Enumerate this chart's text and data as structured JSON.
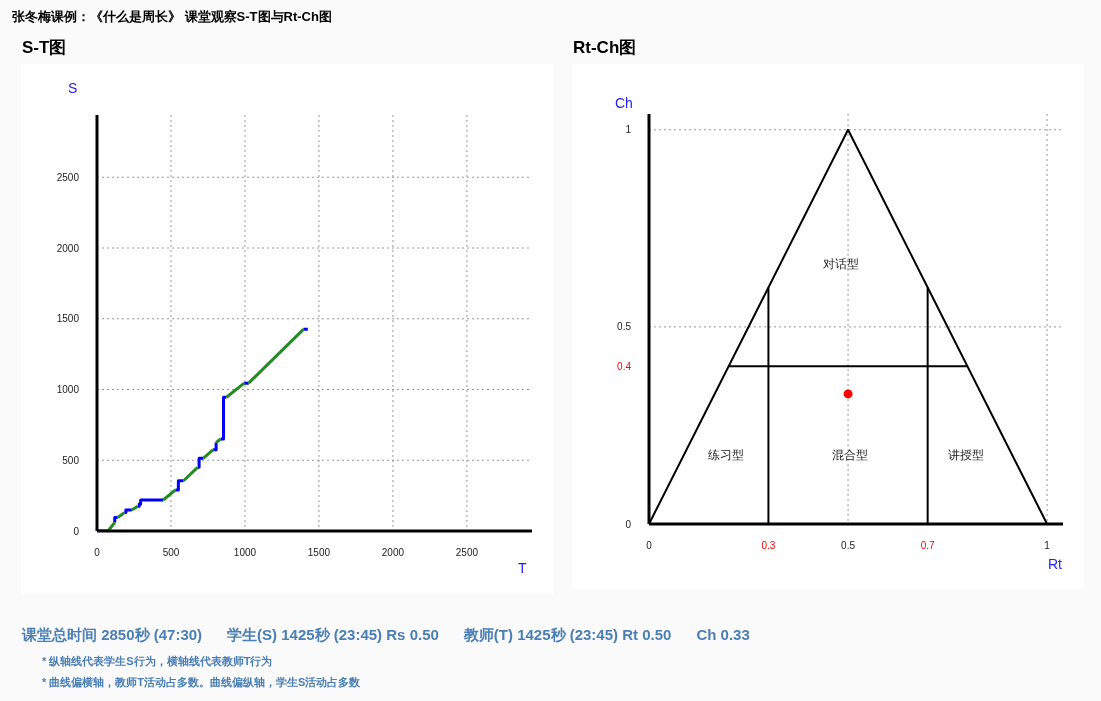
{
  "chart_data": [
    {
      "type": "other",
      "title": "张冬梅课例：《什么是周长》 课堂观察S-T图与Rt-Ch图"
    },
    {
      "type": "line",
      "title": "S-T图",
      "xlabel": "T",
      "ylabel": "S",
      "xlim": [
        0,
        2940
      ],
      "ylim": [
        0,
        2940
      ],
      "xticks": [
        0,
        500,
        1000,
        1500,
        2000,
        2500
      ],
      "yticks": [
        0,
        500,
        1000,
        1500,
        2000,
        2500
      ],
      "grid": true,
      "x": [
        0,
        75,
        120,
        120,
        120,
        140,
        185,
        185,
        195,
        195,
        235,
        275,
        275,
        285,
        285,
        295,
        295,
        448,
        530,
        530,
        550,
        550,
        585,
        680,
        680,
        690,
        690,
        720,
        785,
        785,
        805,
        805,
        835,
        835,
        855,
        855,
        875,
        995,
        995,
        1025,
        1395,
        1395,
        1425
      ],
      "series": [
        {
          "color": "#0000ff",
          "values": [
            0,
            0,
            null,
            60,
            95,
            95,
            null,
            130,
            130,
            148,
            148,
            null,
            175,
            175,
            190,
            190,
            219,
            219,
            null,
            290,
            290,
            355,
            355,
            null,
            450,
            450,
            515,
            515,
            null,
            575,
            575,
            625,
            null,
            650,
            650,
            945,
            945,
            null,
            1045,
            1045,
            null,
            1425,
            1425
          ]
        },
        {
          "color": "#228b22",
          "values": [
            null,
            0,
            60,
            null,
            null,
            95,
            130,
            null,
            null,
            null,
            148,
            175,
            null,
            null,
            null,
            null,
            null,
            219,
            290,
            null,
            null,
            null,
            355,
            450,
            null,
            null,
            null,
            515,
            575,
            null,
            null,
            625,
            650,
            null,
            null,
            null,
            945,
            1045,
            null,
            1045,
            1425,
            null,
            null
          ]
        }
      ]
    },
    {
      "type": "line",
      "title": "Rt-Ch图",
      "xlabel": "Rt",
      "ylabel": "Ch",
      "xlim": [
        0,
        1.04
      ],
      "ylim": [
        0,
        1.04
      ],
      "xticks": [
        0,
        0.3,
        0.5,
        0.7,
        1
      ],
      "yticks": [
        0,
        0.4,
        0.5,
        1
      ],
      "grid": true,
      "series": [
        {
          "type": "line",
          "color": "#000000",
          "x": [
            0,
            0.5,
            1
          ],
          "values": [
            0,
            1,
            0
          ]
        },
        {
          "type": "line",
          "color": "#000000",
          "x": [
            0.3,
            0.3
          ],
          "values": [
            0,
            0.6
          ]
        },
        {
          "type": "line",
          "color": "#000000",
          "x": [
            0.7,
            0.7
          ],
          "values": [
            0,
            0.6
          ]
        },
        {
          "type": "line",
          "color": "#000000",
          "x": [
            0.2,
            0.8
          ],
          "values": [
            0.4,
            0.4
          ]
        },
        {
          "type": "scatter",
          "color": "#ff0000",
          "x": [
            0.5
          ],
          "values": [
            0.33
          ]
        }
      ],
      "annotations": [
        "对话型",
        "练习型",
        "混合型",
        "讲授型"
      ]
    },
    {
      "type": "other",
      "title": "课堂总时间 2850秒 (47:30)      学生(S) 1425秒 (23:45) Rs 0.50      教师(T) 1425秒 (23:45) Rt 0.50      Ch 0.33",
      "annotations": [
        "* 纵轴线代表学生S行为，横轴线代表教师T行为",
        "* 曲线偏横轴，教师T活动占多数。曲线偏纵轴，学生S活动占多数"
      ]
    }
  ]
}
